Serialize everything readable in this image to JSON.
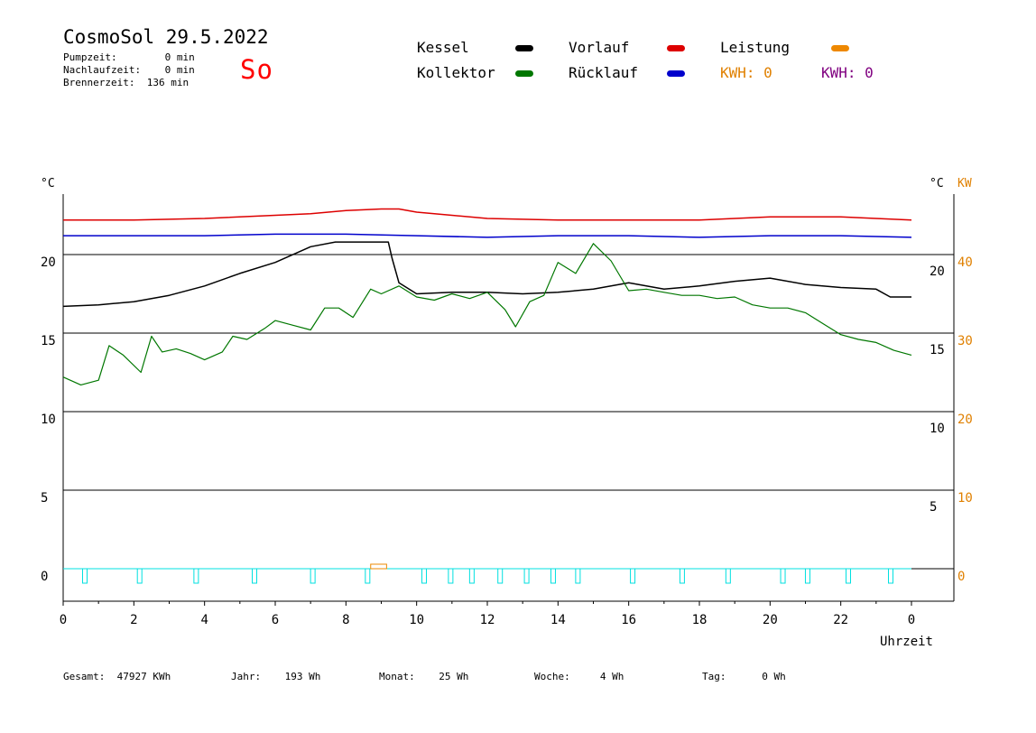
{
  "header": {
    "title": "CosmoSol 29.5.2022",
    "day": "So",
    "pumpzeit": "Pumpzeit:        0 min",
    "nachlaufzeit": "Nachlaufzeit:    0 min",
    "brennerzeit": "Brennerzeit:  136 min"
  },
  "legend": {
    "kessel": "Kessel",
    "kollektor": "Kollektor",
    "vorlauf": "Vorlauf",
    "ruecklauf": "Rücklauf",
    "leistung": "Leistung",
    "kwh1": "KWH: 0",
    "kwh2": "KWH: 0"
  },
  "colors": {
    "kessel": "#000000",
    "kollektor": "#007700",
    "vorlauf": "#dd0000",
    "ruecklauf": "#0000cc",
    "leistung": "#ee8800",
    "kwh2": "#800080",
    "pump": "#00e0e0",
    "axis_kw": "#e08000"
  },
  "footer": {
    "gesamt": "Gesamt:  47927 KWh",
    "jahr": "Jahr:    193 Wh",
    "monat": "Monat:    25 Wh",
    "woche": "Woche:     4 Wh",
    "tag": "Tag:      0 Wh"
  },
  "chart_data": {
    "type": "line",
    "xlabel": "Uhrzeit",
    "ylabel_left": "°C",
    "ylabel_right": "°C",
    "ylabel_right2": "KW",
    "xlim": [
      0,
      24
    ],
    "ylim": [
      -1.5,
      24.5
    ],
    "x_ticks": [
      "0",
      "2",
      "4",
      "6",
      "8",
      "10",
      "12",
      "14",
      "16",
      "18",
      "20",
      "22",
      "0"
    ],
    "y_ticks_left": [
      "0",
      "5",
      "10",
      "15",
      "20"
    ],
    "y_ticks_right": [
      "5",
      "10",
      "15",
      "20"
    ],
    "y_ticks_kw": [
      "0",
      "10",
      "20",
      "30",
      "40"
    ],
    "grid_y": [
      0,
      5,
      10,
      15,
      20
    ],
    "series": [
      {
        "name": "Kessel",
        "key": "kessel",
        "x": [
          0,
          1,
          2,
          3,
          4,
          5,
          6,
          7,
          7.7,
          9.2,
          9.3,
          9.5,
          10,
          11,
          12,
          13,
          14,
          15,
          16,
          17,
          18,
          19,
          20,
          21,
          22,
          23,
          23.4,
          24
        ],
        "y": [
          16.7,
          16.8,
          17.0,
          17.4,
          18.0,
          18.8,
          19.5,
          20.5,
          20.8,
          20.8,
          19.8,
          18.2,
          17.5,
          17.6,
          17.6,
          17.5,
          17.6,
          17.8,
          18.2,
          17.8,
          18.0,
          18.3,
          18.5,
          18.1,
          17.9,
          17.8,
          17.3,
          17.3
        ]
      },
      {
        "name": "Kollektor",
        "key": "kollektor",
        "x": [
          0,
          0.5,
          1,
          1.3,
          1.7,
          2.2,
          2.5,
          2.8,
          3.2,
          3.6,
          4.0,
          4.5,
          4.8,
          5.2,
          5.7,
          6.0,
          6.5,
          7.0,
          7.4,
          7.8,
          8.2,
          8.7,
          9.0,
          9.5,
          10,
          10.5,
          11,
          11.5,
          12,
          12.5,
          12.8,
          13.2,
          13.6,
          14,
          14.5,
          15,
          15.5,
          16,
          16.5,
          17,
          17.5,
          18,
          18.5,
          19,
          19.5,
          20,
          20.5,
          21,
          21.5,
          22,
          22.5,
          23,
          23.5,
          24
        ],
        "y": [
          12.2,
          11.7,
          12.0,
          14.2,
          13.6,
          12.5,
          14.8,
          13.8,
          14.0,
          13.7,
          13.3,
          13.8,
          14.8,
          14.6,
          15.3,
          15.8,
          15.5,
          15.2,
          16.6,
          16.6,
          16.0,
          17.8,
          17.5,
          18.0,
          17.3,
          17.1,
          17.5,
          17.2,
          17.6,
          16.5,
          15.4,
          17.0,
          17.4,
          19.5,
          18.8,
          20.7,
          19.6,
          17.7,
          17.8,
          17.6,
          17.4,
          17.4,
          17.2,
          17.3,
          16.8,
          16.6,
          16.6,
          16.3,
          15.6,
          14.9,
          14.6,
          14.4,
          13.9,
          13.6
        ]
      },
      {
        "name": "Vorlauf",
        "key": "vorlauf",
        "x": [
          0,
          2,
          4,
          6,
          7,
          8,
          9,
          9.5,
          10,
          11,
          12,
          14,
          16,
          18,
          19,
          20,
          22,
          23,
          24
        ],
        "y": [
          22.2,
          22.2,
          22.3,
          22.5,
          22.6,
          22.8,
          22.9,
          22.9,
          22.7,
          22.5,
          22.3,
          22.2,
          22.2,
          22.2,
          22.3,
          22.4,
          22.4,
          22.3,
          22.2
        ]
      },
      {
        "name": "Rücklauf",
        "key": "ruecklauf",
        "x": [
          0,
          4,
          6,
          8,
          10,
          12,
          14,
          16,
          18,
          20,
          22,
          24
        ],
        "y": [
          21.2,
          21.2,
          21.3,
          21.3,
          21.2,
          21.1,
          21.2,
          21.2,
          21.1,
          21.2,
          21.2,
          21.1
        ]
      }
    ],
    "pump_pulses": [
      0.6,
      2.15,
      3.75,
      5.4,
      7.05,
      8.6,
      10.2,
      10.95,
      11.55,
      12.35,
      13.1,
      13.85,
      14.55,
      16.1,
      17.5,
      18.8,
      20.35,
      21.05,
      22.2,
      23.4
    ],
    "leistung_pulse": [
      8.7,
      9.15
    ]
  }
}
